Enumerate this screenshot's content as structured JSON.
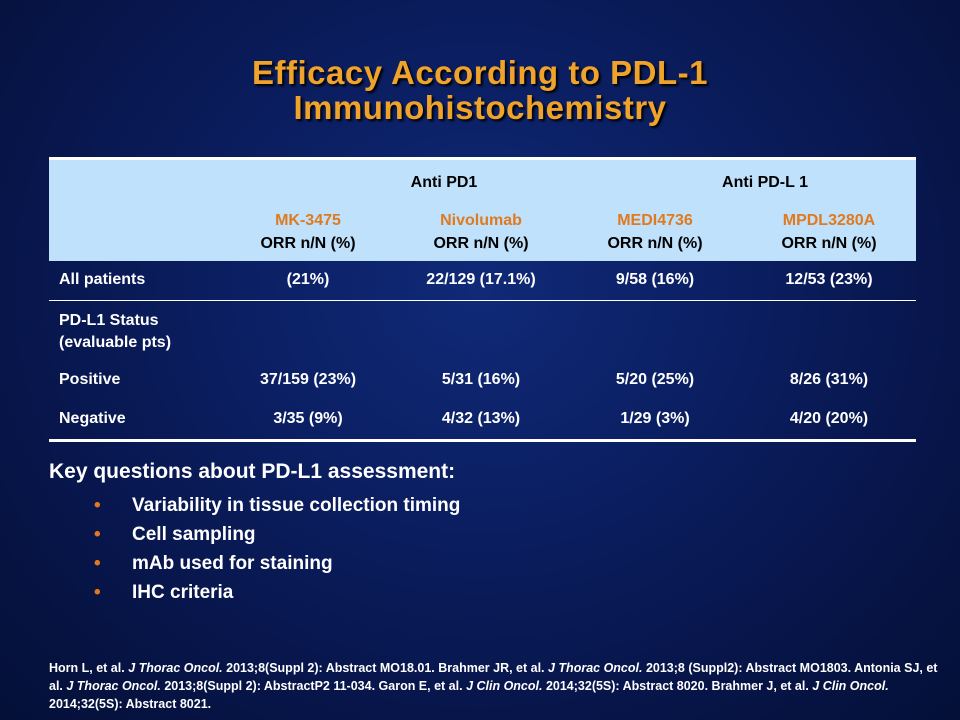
{
  "title": {
    "line1": "Efficacy According to PDL-1",
    "line2": "Immunohistochemistry"
  },
  "table": {
    "groups": [
      "Anti PD1",
      "Anti PD-L 1"
    ],
    "drugs": [
      {
        "name": "MK-3475",
        "metric": "ORR n/N (%)"
      },
      {
        "name": "Nivolumab",
        "metric": "ORR n/N (%)"
      },
      {
        "name": "MEDI4736",
        "metric": "ORR n/N (%)"
      },
      {
        "name": "MPDL3280A",
        "metric": "ORR n/N (%)"
      }
    ],
    "rows": [
      {
        "label": "All patients",
        "values": [
          "(21%)",
          "22/129 (17.1%)",
          "9/58 (16%)",
          "12/53 (23%)"
        ]
      },
      {
        "label_line1": "PD-L1 Status",
        "label_line2": "(evaluable pts)"
      },
      {
        "label": "Positive",
        "values": [
          "37/159 (23%)",
          "5/31 (16%)",
          "5/20 (25%)",
          "8/26 (31%)"
        ]
      },
      {
        "label": "Negative",
        "values": [
          "3/35 (9%)",
          "4/32 (13%)",
          "1/29 (3%)",
          "4/20 (20%)"
        ]
      }
    ]
  },
  "key_questions": {
    "title": "Key questions about PD-L1 assessment:",
    "bullet_symbol": "•",
    "items": [
      "Variability in tissue collection timing",
      "Cell sampling",
      "mAb used for staining",
      "IHC criteria"
    ]
  },
  "references": {
    "p1": "Horn L, et al. ",
    "j1": "J Thorac Oncol.",
    "p2": " 2013;8(Suppl 2): Abstract MO18.01. Brahmer JR, et al. ",
    "j2": "J Thorac Oncol.",
    "p3": " 2013;8 (Suppl2): Abstract MO1803. Antonia SJ, et al. ",
    "j3": "J Thorac Oncol.",
    "p4": " 2013;8(Suppl 2): AbstractP2 11-034. Garon E, et al. ",
    "j4": "J Clin Oncol.",
    "p5": " 2014;32(5S): Abstract 8020. Brahmer J, et al. ",
    "j5": "J Clin Oncol.",
    "p6": " 2014;32(5S): Abstract 8021."
  },
  "colors": {
    "title": "#f0a32a",
    "accent_orange": "#e07a1e",
    "header_band": "#bfe1fb",
    "background": "#0b1f63"
  }
}
